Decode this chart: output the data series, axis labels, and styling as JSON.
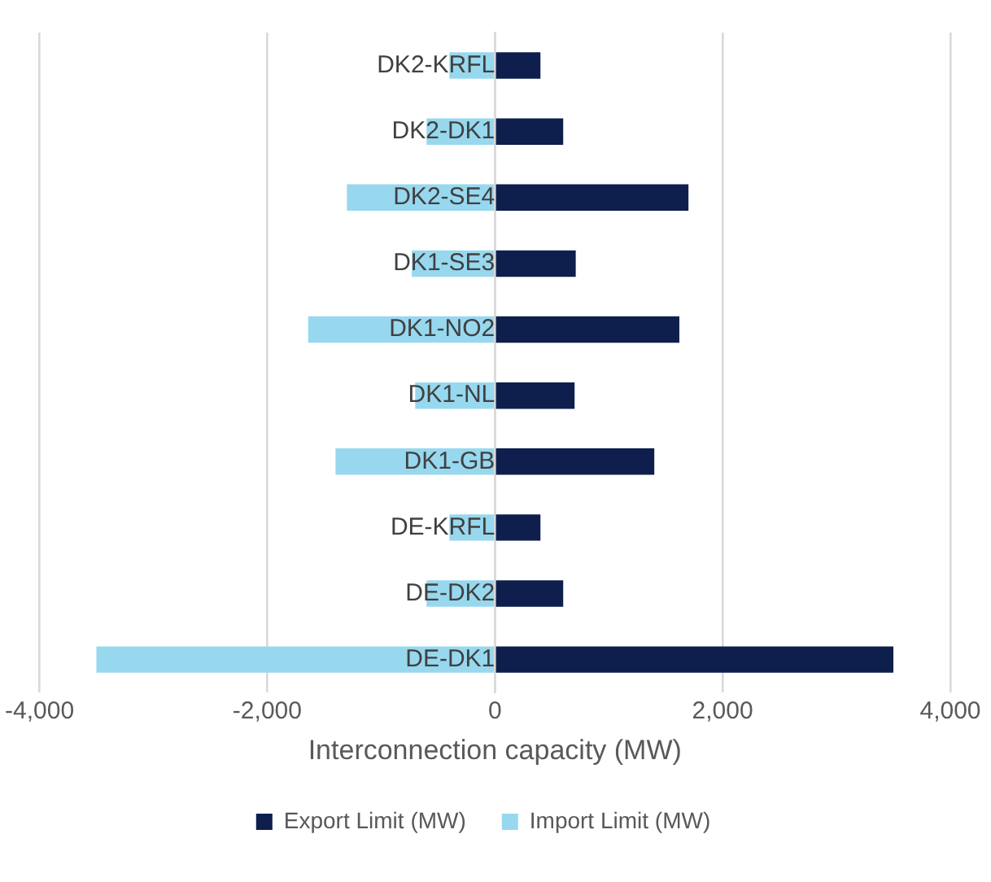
{
  "chart_data": {
    "type": "bar",
    "orientation": "horizontal",
    "stacked": true,
    "categories": [
      "DK2-KRFL",
      "DK2-DK1",
      "DK2-SE4",
      "DK1-SE3",
      "DK1-NO2",
      "DK1-NL",
      "DK1-GB",
      "DE-KRFL",
      "DE-DK2",
      "DE-DK1"
    ],
    "series": [
      {
        "name": "Export Limit (MW)",
        "color": "#0e1f4d",
        "values": [
          400,
          600,
          1700,
          710,
          1620,
          700,
          1400,
          400,
          600,
          3500
        ]
      },
      {
        "name": "Import Limit (MW)",
        "color": "#97d8ef",
        "values": [
          -400,
          -600,
          -1300,
          -730,
          -1640,
          -700,
          -1400,
          -400,
          -600,
          -3500
        ]
      }
    ],
    "xlabel": "Interconnection capacity (MW)",
    "xlim": [
      -4000,
      4000
    ],
    "xticks": [
      {
        "value": -4000,
        "label": "-4,000"
      },
      {
        "value": -2000,
        "label": "-2,000"
      },
      {
        "value": 0,
        "label": "0"
      },
      {
        "value": 2000,
        "label": "2,000"
      },
      {
        "value": 4000,
        "label": "4,000"
      }
    ],
    "grid": "x",
    "legend": "bottom"
  }
}
